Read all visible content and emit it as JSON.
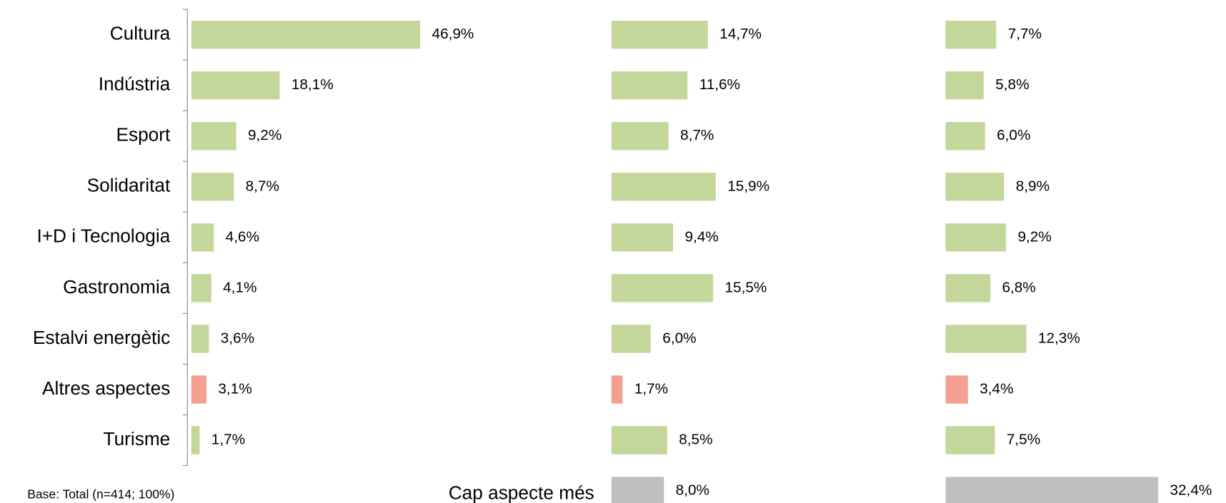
{
  "chart_data": {
    "type": "bar",
    "orientation": "horizontal",
    "categories": [
      "Cultura",
      "Indústria",
      "Esport",
      "Solidaritat",
      "I+D i Tecnologia",
      "Gastronomia",
      "Estalvi energètic",
      "Altres aspectes",
      "Turisme",
      "Cap aspecte més"
    ],
    "colors": [
      "#c4d79b",
      "#c4d79b",
      "#c4d79b",
      "#c4d79b",
      "#c4d79b",
      "#c4d79b",
      "#c4d79b",
      "#f4a090",
      "#c4d79b",
      "#bfbfbf"
    ],
    "series": [
      {
        "values": [
          46.9,
          18.1,
          9.2,
          8.7,
          4.6,
          4.1,
          3.6,
          3.1,
          1.7,
          null
        ],
        "value_labels": [
          "46,9%",
          "18,1%",
          "9,2%",
          "8,7%",
          "4,6%",
          "4,1%",
          "3,6%",
          "3,1%",
          "1,7%",
          null
        ],
        "xlim": [
          0,
          80
        ]
      },
      {
        "values": [
          14.7,
          11.6,
          8.7,
          15.9,
          9.4,
          15.5,
          6.0,
          1.7,
          8.5,
          8.0
        ],
        "value_labels": [
          "14,7%",
          "11,6%",
          "8,7%",
          "15,9%",
          "9,4%",
          "15,5%",
          "6,0%",
          "1,7%",
          "8,5%",
          "8,0%"
        ],
        "xlim": [
          0,
          50
        ]
      },
      {
        "values": [
          7.7,
          5.8,
          6.0,
          8.9,
          9.2,
          6.8,
          12.3,
          3.4,
          7.5,
          32.4
        ],
        "value_labels": [
          "7,7%",
          "5,8%",
          "6,0%",
          "8,9%",
          "9,2%",
          "6,8%",
          "12,3%",
          "3,4%",
          "7,5%",
          "32,4%"
        ],
        "xlim": [
          0,
          50
        ]
      }
    ],
    "footnote": "Base: Total (n=414; 100%)"
  }
}
